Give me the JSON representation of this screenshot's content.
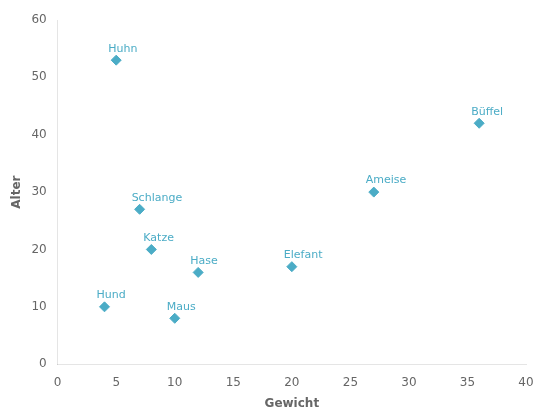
{
  "chart_data": {
    "type": "scatter",
    "x": [
      5,
      4,
      7,
      8,
      10,
      12,
      20,
      27,
      36
    ],
    "values": [
      53,
      10,
      27,
      20,
      8,
      16,
      17,
      30,
      42
    ],
    "labels": [
      "Huhn",
      "Hund",
      "Schlange",
      "Katze",
      "Maus",
      "Hase",
      "Elefant",
      "Ameise",
      "Büffel"
    ],
    "color": "#4BACC6",
    "marker": "diamond",
    "xlabel": "Gewicht",
    "ylabel": "Alter",
    "xlim": [
      0,
      40
    ],
    "ylim": [
      0,
      60
    ],
    "xticks": [
      0,
      5,
      10,
      15,
      20,
      25,
      30,
      35,
      40
    ],
    "yticks": [
      0,
      10,
      20,
      30,
      40,
      50,
      60
    ],
    "grid": false
  }
}
